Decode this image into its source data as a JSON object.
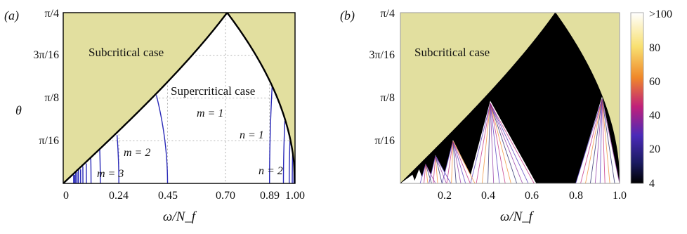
{
  "colors": {
    "subcritical_fill": "#e2df9f",
    "boundary": "#000000",
    "mode_curves": "#2a2ab8",
    "grid": "#9a9a9a",
    "colorbar_stops": [
      "#000000",
      "#1a1a60",
      "#4a2ab8",
      "#c0207a",
      "#f0882a",
      "#f8e070",
      "#ffffff"
    ]
  },
  "panels": {
    "a": {
      "label": "(a)",
      "xlabel": "ω/N_f",
      "ylabel": "θ",
      "xticks": [
        "0",
        "0.24",
        "0.45",
        "0.70",
        "0.89",
        "1.00"
      ],
      "yticks": [
        "π/16",
        "π/8",
        "3π/16",
        "π/4"
      ],
      "region_sub": "Subcritical case",
      "region_super": "Supercritical case",
      "mode_labels": [
        "m = 1",
        "m = 2",
        "m = 3",
        "n = 1",
        "n = 2"
      ]
    },
    "b": {
      "label": "(b)",
      "xlabel": "ω/N_f",
      "xticks": [
        "0.2",
        "0.4",
        "0.6",
        "0.8",
        "1.0"
      ],
      "yticks": [
        "π/16",
        "π/8",
        "3π/16",
        "π/4"
      ],
      "region_sub": "Subcritical case",
      "colorbar_ticks": [
        "4",
        "20",
        "40",
        "60",
        "80",
        ">100"
      ]
    }
  },
  "chart_data": [
    {
      "type": "line",
      "panel": "a",
      "x_range": [
        0,
        1
      ],
      "y_range": [
        0,
        0.7854
      ],
      "critical_angle_curve": "θ = arcsin(ω/N_f) for ω ≤ 0.707, θ = arccos(ω/N_f) for ω ≥ 0.707",
      "x_gridlines": [
        0.24,
        0.45,
        0.7,
        0.89,
        1.0
      ],
      "y_gridlines": [
        "π/16",
        "π/8",
        "3π/16"
      ],
      "series": [
        {
          "name": "m = 1",
          "x_at_theta0": 0.45
        },
        {
          "name": "m = 2",
          "x_at_theta0": 0.24
        },
        {
          "name": "m = 3",
          "x_at_theta0": 0.16
        },
        {
          "name": "n = 1",
          "x_at_theta0": 0.89
        },
        {
          "name": "n = 2",
          "x_at_theta0": 0.97
        }
      ]
    },
    {
      "type": "heatmap",
      "panel": "b",
      "x_range": [
        0,
        1
      ],
      "y_range": [
        0,
        0.7854
      ],
      "color_range": [
        4,
        100
      ],
      "colorbar_label_top": ">100"
    }
  ]
}
